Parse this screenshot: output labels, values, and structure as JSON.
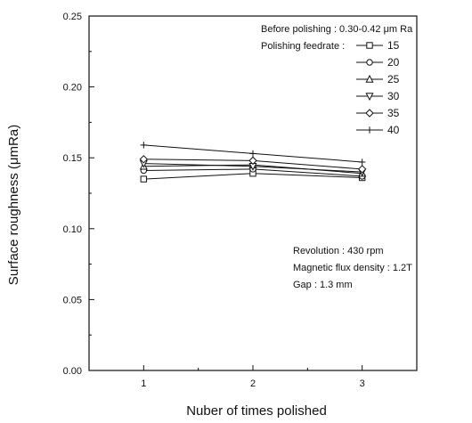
{
  "chart_data": {
    "type": "line",
    "xlabel": "Nuber of times polished",
    "ylabel": "Surface roughness (μmRa)",
    "x": [
      1,
      2,
      3
    ],
    "xticks": [
      "1",
      "2",
      "3"
    ],
    "xlim": [
      0.5,
      3.5
    ],
    "ylim": [
      0.0,
      0.25
    ],
    "yticks": [
      "0.00",
      "0.05",
      "0.10",
      "0.15",
      "0.20",
      "0.25"
    ],
    "grid": false,
    "legend_placement": "top-right",
    "annotation_top": "Before polishing :  0.30-0.42 μm Ra",
    "legend_title": "Polishing feedrate :",
    "series": [
      {
        "name": "15",
        "marker": "square",
        "values": [
          0.135,
          0.139,
          0.136
        ]
      },
      {
        "name": "20",
        "marker": "circle",
        "values": [
          0.141,
          0.142,
          0.137
        ]
      },
      {
        "name": "25",
        "marker": "triangle-up",
        "values": [
          0.144,
          0.145,
          0.139
        ]
      },
      {
        "name": "30",
        "marker": "triangle-down",
        "values": [
          0.146,
          0.144,
          0.14
        ]
      },
      {
        "name": "35",
        "marker": "diamond",
        "values": [
          0.149,
          0.148,
          0.142
        ]
      },
      {
        "name": "40",
        "marker": "plus",
        "values": [
          0.159,
          0.153,
          0.147
        ]
      }
    ],
    "annotations_bottom": [
      "Revolution : 430 rpm",
      "Magnetic flux density : 1.2T",
      "Gap : 1.3 mm"
    ],
    "line_color": "#111111"
  }
}
